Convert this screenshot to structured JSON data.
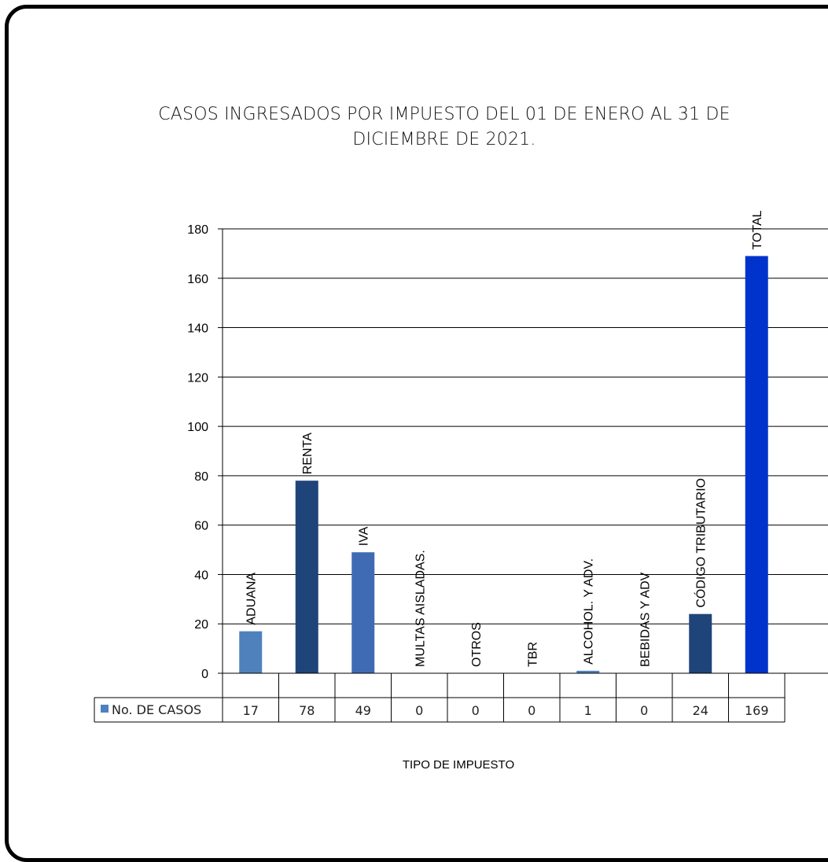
{
  "chart_data": {
    "type": "bar",
    "title": "CASOS INGRESADOS POR IMPUESTO DEL 01 DE ENERO AL 31 DE DICIEMBRE DE 2021.",
    "xlabel": "TIPO DE IMPUESTO",
    "ylabel": "",
    "ylim": [
      0,
      180
    ],
    "yticks": [
      0,
      20,
      40,
      60,
      80,
      100,
      120,
      140,
      160,
      180
    ],
    "grid": true,
    "legend": "data-table-left",
    "categories": [
      "ADUANA",
      "RENTA",
      "IVA",
      "MULTAS AISLADAS.",
      "OTROS",
      "TBR",
      "ALCOHOL. Y ADV.",
      "BEBIDAS Y ADV",
      "CÓDIGO TRIBUTARIO",
      "TOTAL"
    ],
    "series": [
      {
        "name": "No. DE CASOS",
        "values": [
          17,
          78,
          49,
          0,
          0,
          0,
          1,
          0,
          24,
          169
        ]
      }
    ],
    "data_table_labels": [
      "17",
      "78",
      "49",
      "0",
      "0",
      "0",
      "1",
      "0",
      "24",
      "169"
    ],
    "bar_colors": [
      "#4f81bd",
      "#1f4479",
      "#3f6bb4",
      "#4f81bd",
      "#4f81bd",
      "#4f81bd",
      "#4f81bd",
      "#4f81bd",
      "#1f4479",
      "#0033cc"
    ],
    "legend_color": "#4f81bd"
  }
}
